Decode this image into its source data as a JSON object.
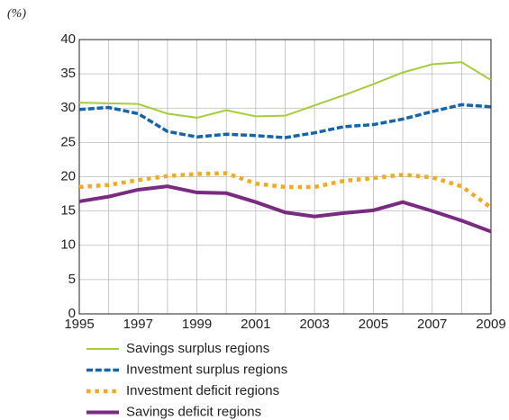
{
  "chart_data": {
    "type": "line",
    "y_axis_label": "(%)",
    "x": [
      1995,
      1996,
      1997,
      1998,
      1999,
      2000,
      2001,
      2002,
      2003,
      2004,
      2005,
      2006,
      2007,
      2008,
      2009
    ],
    "xlim": [
      1995,
      2009
    ],
    "xticks": [
      1995,
      1997,
      1999,
      2001,
      2003,
      2005,
      2007,
      2009
    ],
    "xminorticks": [
      1996,
      1998,
      2000,
      2002,
      2004,
      2006,
      2008
    ],
    "ylim": [
      0,
      40
    ],
    "yticks": [
      0,
      5,
      10,
      15,
      20,
      25,
      30,
      35,
      40
    ],
    "grid": true,
    "legend": "bottom",
    "series": [
      {
        "name": "Savings surplus regions",
        "color": "#a6cd3a",
        "style": "solid",
        "width": 2,
        "values": [
          30.8,
          30.7,
          30.6,
          29.2,
          28.6,
          29.7,
          28.8,
          28.9,
          30.4,
          31.9,
          33.5,
          35.2,
          36.4,
          36.7,
          34.1
        ]
      },
      {
        "name": "Investment surplus regions",
        "color": "#1264ae",
        "style": "dashed",
        "width": 3.5,
        "values": [
          29.8,
          30.1,
          29.2,
          26.6,
          25.8,
          26.2,
          26.0,
          25.7,
          26.4,
          27.3,
          27.6,
          28.4,
          29.5,
          30.5,
          30.2
        ]
      },
      {
        "name": "Investment deficit regions",
        "color": "#f7a81b",
        "style": "dotted",
        "width": 4.5,
        "values": [
          18.5,
          18.8,
          19.5,
          20.1,
          20.4,
          20.5,
          19.0,
          18.5,
          18.5,
          19.4,
          19.8,
          20.3,
          19.9,
          18.6,
          15.5
        ]
      },
      {
        "name": "Savings deficit regions",
        "color": "#7b2a83",
        "style": "solid",
        "width": 4,
        "values": [
          16.4,
          17.1,
          18.1,
          18.6,
          17.7,
          17.6,
          16.3,
          14.8,
          14.2,
          14.7,
          15.1,
          16.3,
          15.0,
          13.6,
          12.0
        ]
      }
    ]
  }
}
